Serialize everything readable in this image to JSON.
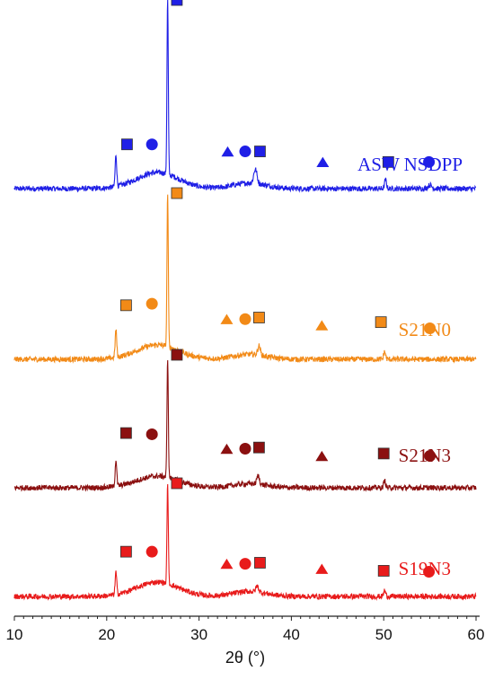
{
  "chart_data": {
    "type": "line",
    "title": "",
    "xlabel": "2θ (°)",
    "ylabel": "",
    "xlim": [
      10,
      60
    ],
    "x_ticks": [
      10,
      20,
      30,
      40,
      50,
      60
    ],
    "y_axis_shown": false,
    "grid": false,
    "legend": "series labels placed at right end of each trace",
    "series": [
      {
        "name": "ASW NSDPP",
        "color": "#1f1fe6",
        "peaks": [
          {
            "x": 21.0,
            "height": 0.18,
            "width": 0.12
          },
          {
            "x": 26.6,
            "height": 1.0,
            "width": 0.1
          },
          {
            "x": 36.1,
            "height": 0.08,
            "width": 0.25
          },
          {
            "x": 50.2,
            "height": 0.05,
            "width": 0.15
          },
          {
            "x": 55.0,
            "height": 0.02,
            "width": 0.3
          }
        ],
        "markers": [
          {
            "shape": "square",
            "x": 27.6,
            "level": 1.0
          },
          {
            "shape": "square",
            "x": 22.2,
            "level": 0.18
          },
          {
            "shape": "circle",
            "x": 24.9,
            "level": 0.18
          },
          {
            "shape": "triangle",
            "x": 33.1,
            "level": 0.14
          },
          {
            "shape": "circle",
            "x": 35.0,
            "level": 0.14
          },
          {
            "shape": "square",
            "x": 36.6,
            "level": 0.14
          },
          {
            "shape": "triangle",
            "x": 43.4,
            "level": 0.08
          },
          {
            "shape": "square",
            "x": 50.5,
            "level": 0.08
          },
          {
            "shape": "circle",
            "x": 54.9,
            "level": 0.08
          }
        ]
      },
      {
        "name": "S21N0",
        "color": "#f28a17",
        "peaks": [
          {
            "x": 21.0,
            "height": 0.18,
            "width": 0.12
          },
          {
            "x": 26.6,
            "height": 1.0,
            "width": 0.1
          },
          {
            "x": 36.5,
            "height": 0.06,
            "width": 0.2
          },
          {
            "x": 50.1,
            "height": 0.05,
            "width": 0.15
          }
        ],
        "markers": [
          {
            "shape": "square",
            "x": 27.6,
            "level": 1.0
          },
          {
            "shape": "square",
            "x": 22.1,
            "level": 0.27
          },
          {
            "shape": "circle",
            "x": 24.9,
            "level": 0.28
          },
          {
            "shape": "triangle",
            "x": 33.0,
            "level": 0.18
          },
          {
            "shape": "circle",
            "x": 35.0,
            "level": 0.18
          },
          {
            "shape": "square",
            "x": 36.5,
            "level": 0.19
          },
          {
            "shape": "triangle",
            "x": 43.3,
            "level": 0.14
          },
          {
            "shape": "square",
            "x": 49.7,
            "level": 0.16
          },
          {
            "shape": "circle",
            "x": 55.0,
            "level": 0.12
          }
        ]
      },
      {
        "name": "S21N3",
        "color": "#8b1010",
        "peaks": [
          {
            "x": 21.0,
            "height": 0.22,
            "width": 0.12
          },
          {
            "x": 26.6,
            "height": 1.0,
            "width": 0.1
          },
          {
            "x": 36.4,
            "height": 0.07,
            "width": 0.2
          },
          {
            "x": 50.1,
            "height": 0.06,
            "width": 0.15
          }
        ],
        "markers": [
          {
            "shape": "square",
            "x": 27.6,
            "level": 1.0
          },
          {
            "shape": "square",
            "x": 22.1,
            "level": 0.35
          },
          {
            "shape": "circle",
            "x": 24.9,
            "level": 0.34
          },
          {
            "shape": "triangle",
            "x": 33.0,
            "level": 0.22
          },
          {
            "shape": "circle",
            "x": 35.0,
            "level": 0.22
          },
          {
            "shape": "square",
            "x": 36.5,
            "level": 0.23
          },
          {
            "shape": "triangle",
            "x": 43.3,
            "level": 0.16
          },
          {
            "shape": "square",
            "x": 50.0,
            "level": 0.18
          },
          {
            "shape": "circle",
            "x": 55.0,
            "level": 0.16
          }
        ]
      },
      {
        "name": "S19N3",
        "color": "#e81b1b",
        "peaks": [
          {
            "x": 21.0,
            "height": 0.22,
            "width": 0.12
          },
          {
            "x": 26.6,
            "height": 1.0,
            "width": 0.1
          },
          {
            "x": 36.3,
            "height": 0.06,
            "width": 0.2
          },
          {
            "x": 50.1,
            "height": 0.06,
            "width": 0.15
          }
        ],
        "markers": [
          {
            "shape": "square",
            "x": 27.6,
            "level": 1.0
          },
          {
            "shape": "square",
            "x": 22.1,
            "level": 0.32
          },
          {
            "shape": "circle",
            "x": 24.9,
            "level": 0.32
          },
          {
            "shape": "triangle",
            "x": 33.0,
            "level": 0.2
          },
          {
            "shape": "circle",
            "x": 35.0,
            "level": 0.2
          },
          {
            "shape": "square",
            "x": 36.6,
            "level": 0.21
          },
          {
            "shape": "triangle",
            "x": 43.3,
            "level": 0.15
          },
          {
            "shape": "square",
            "x": 50.0,
            "level": 0.13
          },
          {
            "shape": "circle",
            "x": 54.9,
            "level": 0.12
          }
        ]
      }
    ]
  }
}
